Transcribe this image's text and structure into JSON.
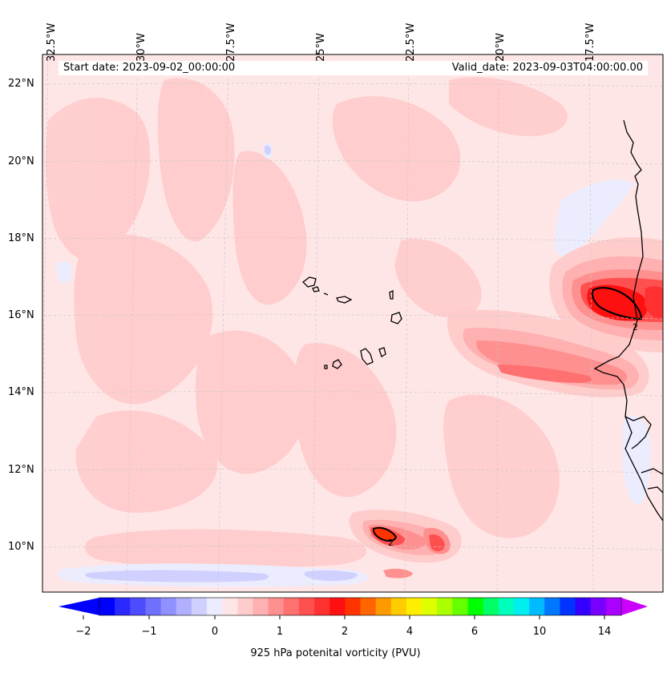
{
  "map": {
    "lon_labels": [
      "32.5°W",
      "30°W",
      "27.5°W",
      "25°W",
      "22.5°W",
      "20°W",
      "17.5°W"
    ],
    "lat_labels": [
      "22°N",
      "20°N",
      "18°N",
      "16°N",
      "14°N",
      "12°N",
      "10°N"
    ],
    "start_date": "Start date: 2023-09-02_00:00:00",
    "valid_date": "Valid_date: 2023-09-03T04:00:00.00",
    "contour_label": "2",
    "extent": {
      "lon_min": -32.5,
      "lon_max": -15.3,
      "lat_min": 8.9,
      "lat_max": 22.8
    }
  },
  "colorbar": {
    "title": "925 hPa potenital vorticity (PVU)",
    "ticks": [
      "−2",
      "−1",
      "0",
      "1",
      "2",
      "4",
      "6",
      "10",
      "14"
    ],
    "colors": [
      "#0000ff",
      "#2a2aff",
      "#4d4dff",
      "#7070ff",
      "#9090ff",
      "#b0b0ff",
      "#d0d0ff",
      "#ececff",
      "#ffe6e6",
      "#ffcccc",
      "#ffb0b0",
      "#ff9090",
      "#ff7070",
      "#ff5050",
      "#ff3030",
      "#ff1010",
      "#ff3300",
      "#ff6600",
      "#ff9900",
      "#ffcc00",
      "#ffee00",
      "#ddff00",
      "#aaff00",
      "#66ff00",
      "#00ff00",
      "#00ff66",
      "#00ffbb",
      "#00eeee",
      "#00bbff",
      "#0077ff",
      "#0033ff",
      "#3300ff",
      "#7700ff",
      "#aa00ff"
    ],
    "extend_min_color": "#0000ff",
    "extend_max_color": "#cc00ff"
  }
}
